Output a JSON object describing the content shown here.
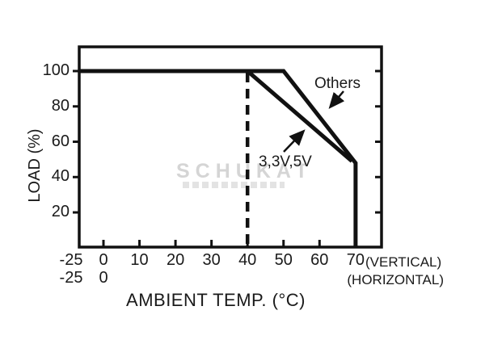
{
  "figure": {
    "watermark": {
      "text": "SCHUKAT"
    }
  },
  "chart_data": {
    "type": "line",
    "title": "",
    "xlabel": "AMBIENT TEMP. (°C)",
    "ylabel": "LOAD (%)",
    "line_color": "#111111",
    "grid": false,
    "legend_position": "inline-annotations",
    "xlim": [
      -25,
      77
    ],
    "ylim": [
      0,
      113
    ],
    "x_axis": {
      "ticks": [
        {
          "value": -25,
          "label": "-25"
        },
        {
          "value": 0,
          "label": "0"
        },
        {
          "value": 10,
          "label": "10"
        },
        {
          "value": 20,
          "label": "20"
        },
        {
          "value": 30,
          "label": "30"
        },
        {
          "value": 40,
          "label": "40"
        },
        {
          "value": 50,
          "label": "50"
        },
        {
          "value": 60,
          "label": "60"
        },
        {
          "value": 70,
          "label": "70"
        }
      ],
      "row1_suffix": "(VERTICAL)",
      "ticks_row2": [
        {
          "value": -25,
          "label": "-25"
        },
        {
          "value": 0,
          "label": "0"
        }
      ],
      "row2_suffix": "(HORIZONTAL)"
    },
    "y_axis": {
      "ticks": [
        {
          "value": 100,
          "label": "100"
        },
        {
          "value": 80,
          "label": "80"
        },
        {
          "value": 60,
          "label": "60"
        },
        {
          "value": 40,
          "label": "40"
        },
        {
          "value": 20,
          "label": "20"
        }
      ]
    },
    "reference_line": {
      "x": 40,
      "style": "dashed"
    },
    "series": [
      {
        "name": "Others",
        "points": [
          [
            -25,
            100
          ],
          [
            50,
            100
          ],
          [
            70,
            48
          ],
          [
            70,
            0
          ]
        ]
      },
      {
        "name": "3,3V,5V",
        "points": [
          [
            40,
            100
          ],
          [
            69,
            49
          ]
        ]
      }
    ],
    "annotations": [
      {
        "text": "Others"
      },
      {
        "text": "3,3V,5V"
      }
    ]
  }
}
